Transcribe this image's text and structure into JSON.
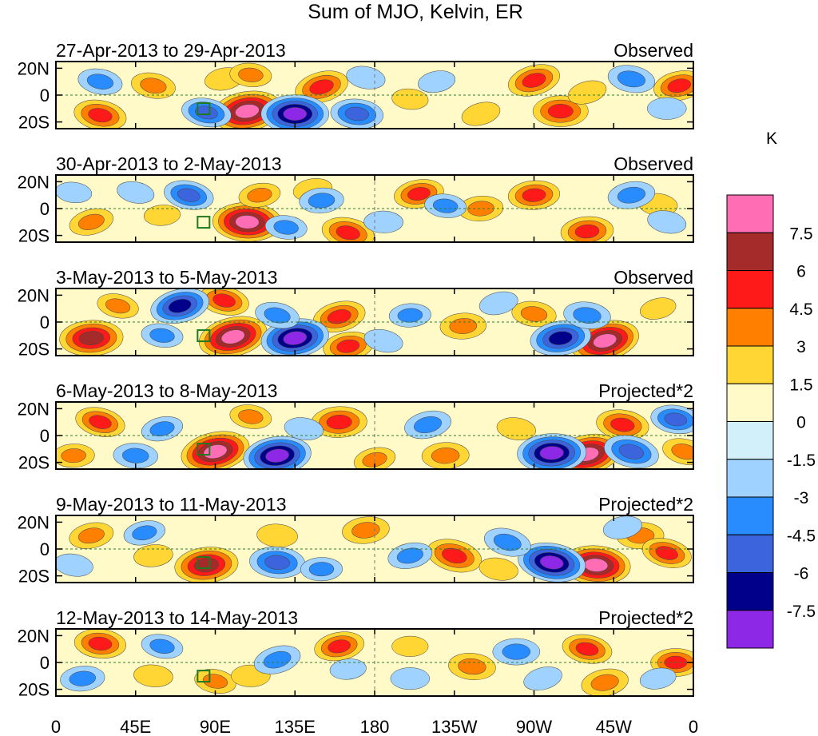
{
  "chart_data": {
    "type": "heatmap",
    "title": "Sum of MJO, Kelvin, ER",
    "units": "K",
    "x_ticks": [
      "0",
      "45E",
      "90E",
      "135E",
      "180",
      "135W",
      "90W",
      "45W",
      "0"
    ],
    "y_ticks": [
      "20N",
      "0",
      "20S"
    ],
    "x_range_deg_east": [
      0,
      360
    ],
    "y_range_deg": [
      -25,
      25
    ],
    "colorbar": {
      "labels": [
        "7.5",
        "6",
        "4.5",
        "3",
        "1.5",
        "0",
        "-1.5",
        "-3",
        "-4.5",
        "-6",
        "-7.5"
      ],
      "levels": [
        7.5,
        6,
        4.5,
        3,
        1.5,
        0,
        -1.5,
        -3,
        -4.5,
        -6,
        -7.5
      ],
      "colors": [
        "#ff6eb4",
        "#a52a2a",
        "#ff1a1a",
        "#ff7f00",
        "#ffd633",
        "#fffac8",
        "#d2f0fa",
        "#a0d2ff",
        "#288cff",
        "#3c64dc",
        "#00008b",
        "#8c28e6"
      ]
    },
    "panels": [
      {
        "date_range": "27-Apr-2013 to 29-Apr-2013",
        "kind": "Observed",
        "blobs": [
          {
            "lon": 108,
            "lat": -12,
            "v": 8.2
          },
          {
            "lon": 150,
            "lat": 6,
            "v": 5.2
          },
          {
            "lon": 270,
            "lat": 11,
            "v": 5.0
          },
          {
            "lon": 285,
            "lat": -12,
            "v": 5.5
          },
          {
            "lon": 25,
            "lat": -15,
            "v": 5.0
          },
          {
            "lon": 55,
            "lat": 7,
            "v": 3.5
          },
          {
            "lon": 352,
            "lat": 7,
            "v": 4.8
          },
          {
            "lon": 95,
            "lat": 12,
            "v": 2.5
          },
          {
            "lon": 110,
            "lat": 15,
            "v": 3.0
          },
          {
            "lon": 300,
            "lat": 2,
            "v": 2.5
          },
          {
            "lon": 240,
            "lat": -14,
            "v": 2.5
          },
          {
            "lon": 200,
            "lat": -3,
            "v": 2.0
          },
          {
            "lon": 135,
            "lat": -14,
            "v": -7.8
          },
          {
            "lon": 170,
            "lat": -14,
            "v": -5.0
          },
          {
            "lon": 85,
            "lat": -13,
            "v": -4.5
          },
          {
            "lon": 25,
            "lat": 10,
            "v": -3.5
          },
          {
            "lon": 325,
            "lat": 12,
            "v": -4.0
          },
          {
            "lon": 175,
            "lat": 13,
            "v": -2.5
          },
          {
            "lon": 215,
            "lat": 10,
            "v": -2.2
          },
          {
            "lon": 345,
            "lat": -10,
            "v": -2.5
          }
        ]
      },
      {
        "date_range": "30-Apr-2013 to 2-May-2013",
        "kind": "Observed",
        "blobs": [
          {
            "lon": 108,
            "lat": -10,
            "v": 8.0
          },
          {
            "lon": 165,
            "lat": -18,
            "v": 5.0
          },
          {
            "lon": 270,
            "lat": 10,
            "v": 4.8
          },
          {
            "lon": 205,
            "lat": 11,
            "v": 4.5
          },
          {
            "lon": 300,
            "lat": -17,
            "v": 5.0
          },
          {
            "lon": 20,
            "lat": -10,
            "v": 3.5
          },
          {
            "lon": 115,
            "lat": 10,
            "v": 3.0
          },
          {
            "lon": 240,
            "lat": 0,
            "v": 3.5
          },
          {
            "lon": 340,
            "lat": 3,
            "v": 2.5
          },
          {
            "lon": 145,
            "lat": 14,
            "v": 2.5
          },
          {
            "lon": 60,
            "lat": -5,
            "v": 2.0
          },
          {
            "lon": 75,
            "lat": 10,
            "v": -4.5
          },
          {
            "lon": 150,
            "lat": 6,
            "v": -3.5
          },
          {
            "lon": 220,
            "lat": 2,
            "v": -3.0
          },
          {
            "lon": 325,
            "lat": 10,
            "v": -4.0
          },
          {
            "lon": 130,
            "lat": -14,
            "v": -3.0
          },
          {
            "lon": 185,
            "lat": -10,
            "v": -2.5
          },
          {
            "lon": 45,
            "lat": 12,
            "v": -2.2
          },
          {
            "lon": 345,
            "lat": -10,
            "v": -2.5
          },
          {
            "lon": 10,
            "lat": 12,
            "v": -2.0
          }
        ]
      },
      {
        "date_range": "3-May-2013 to 5-May-2013",
        "kind": "Observed",
        "blobs": [
          {
            "lon": 100,
            "lat": -11,
            "v": 8.0
          },
          {
            "lon": 20,
            "lat": -12,
            "v": 7.0
          },
          {
            "lon": 310,
            "lat": -14,
            "v": 8.0
          },
          {
            "lon": 160,
            "lat": 4,
            "v": 5.0
          },
          {
            "lon": 95,
            "lat": 16,
            "v": 4.5
          },
          {
            "lon": 165,
            "lat": -18,
            "v": 4.5
          },
          {
            "lon": 230,
            "lat": -3,
            "v": 3.8
          },
          {
            "lon": 270,
            "lat": 6,
            "v": 3.5
          },
          {
            "lon": 35,
            "lat": 12,
            "v": 3.0
          },
          {
            "lon": 340,
            "lat": 10,
            "v": 2.0
          },
          {
            "lon": 135,
            "lat": -12,
            "v": -7.8
          },
          {
            "lon": 70,
            "lat": 12,
            "v": -6.2
          },
          {
            "lon": 285,
            "lat": -12,
            "v": -6.5
          },
          {
            "lon": 300,
            "lat": 5,
            "v": -4.0
          },
          {
            "lon": 200,
            "lat": 5,
            "v": -3.0
          },
          {
            "lon": 125,
            "lat": 5,
            "v": -3.5
          },
          {
            "lon": 60,
            "lat": -10,
            "v": -3.0
          },
          {
            "lon": 250,
            "lat": 14,
            "v": -2.5
          },
          {
            "lon": 185,
            "lat": -14,
            "v": -2.5
          }
        ]
      },
      {
        "date_range": "6-May-2013 to 8-May-2013",
        "kind": "Projected*2",
        "blobs": [
          {
            "lon": 90,
            "lat": -12,
            "v": 8.0
          },
          {
            "lon": 300,
            "lat": -14,
            "v": 8.0
          },
          {
            "lon": 160,
            "lat": 10,
            "v": 5.5
          },
          {
            "lon": 320,
            "lat": 8,
            "v": 5.0
          },
          {
            "lon": 25,
            "lat": 10,
            "v": 4.5
          },
          {
            "lon": 220,
            "lat": -15,
            "v": 4.0
          },
          {
            "lon": 180,
            "lat": -18,
            "v": 3.0
          },
          {
            "lon": 10,
            "lat": -15,
            "v": 3.0
          },
          {
            "lon": 355,
            "lat": -12,
            "v": 3.5
          },
          {
            "lon": 110,
            "lat": 14,
            "v": 3.0
          },
          {
            "lon": 260,
            "lat": 5,
            "v": 2.5
          },
          {
            "lon": 280,
            "lat": -13,
            "v": -8.0
          },
          {
            "lon": 125,
            "lat": -15,
            "v": -7.8
          },
          {
            "lon": 325,
            "lat": -12,
            "v": -5.5
          },
          {
            "lon": 60,
            "lat": 5,
            "v": -3.0
          },
          {
            "lon": 210,
            "lat": 8,
            "v": -4.0
          },
          {
            "lon": 350,
            "lat": 12,
            "v": -4.5
          },
          {
            "lon": 45,
            "lat": -15,
            "v": -3.5
          },
          {
            "lon": 140,
            "lat": 5,
            "v": -2.5
          }
        ]
      },
      {
        "date_range": "9-May-2013 to 11-May-2013",
        "kind": "Projected*2",
        "blobs": [
          {
            "lon": 85,
            "lat": -12,
            "v": 7.0
          },
          {
            "lon": 305,
            "lat": -12,
            "v": 8.0
          },
          {
            "lon": 225,
            "lat": -5,
            "v": 5.5
          },
          {
            "lon": 175,
            "lat": 14,
            "v": 4.0
          },
          {
            "lon": 20,
            "lat": 10,
            "v": 3.5
          },
          {
            "lon": 330,
            "lat": 10,
            "v": 4.0
          },
          {
            "lon": 345,
            "lat": -3,
            "v": 4.5
          },
          {
            "lon": 125,
            "lat": 10,
            "v": 2.8
          },
          {
            "lon": 55,
            "lat": -5,
            "v": 2.5
          },
          {
            "lon": 250,
            "lat": -15,
            "v": 2.5
          },
          {
            "lon": 280,
            "lat": -10,
            "v": -7.8
          },
          {
            "lon": 125,
            "lat": -10,
            "v": -5.5
          },
          {
            "lon": 255,
            "lat": 5,
            "v": -4.0
          },
          {
            "lon": 200,
            "lat": -5,
            "v": -3.5
          },
          {
            "lon": 50,
            "lat": 12,
            "v": -3.0
          },
          {
            "lon": 150,
            "lat": -15,
            "v": -3.0
          },
          {
            "lon": 10,
            "lat": -12,
            "v": -2.5
          },
          {
            "lon": 320,
            "lat": 16,
            "v": -2.5
          }
        ]
      },
      {
        "date_range": "12-May-2013 to 14-May-2013",
        "kind": "Projected*2",
        "blobs": [
          {
            "lon": 25,
            "lat": 14,
            "v": 4.8
          },
          {
            "lon": 300,
            "lat": 10,
            "v": 4.5
          },
          {
            "lon": 350,
            "lat": 0,
            "v": 4.5
          },
          {
            "lon": 160,
            "lat": 12,
            "v": 4.5
          },
          {
            "lon": 235,
            "lat": -3,
            "v": 4.0
          },
          {
            "lon": 310,
            "lat": -15,
            "v": 4.0
          },
          {
            "lon": 90,
            "lat": -14,
            "v": 3.0
          },
          {
            "lon": 110,
            "lat": -10,
            "v": 2.5
          },
          {
            "lon": 55,
            "lat": -10,
            "v": 2.5
          },
          {
            "lon": 200,
            "lat": 12,
            "v": 2.0
          },
          {
            "lon": 260,
            "lat": 8,
            "v": -4.0
          },
          {
            "lon": 125,
            "lat": 2,
            "v": -4.0
          },
          {
            "lon": 60,
            "lat": 12,
            "v": -3.0
          },
          {
            "lon": 15,
            "lat": -12,
            "v": -3.5
          },
          {
            "lon": 200,
            "lat": -12,
            "v": -2.5
          },
          {
            "lon": 275,
            "lat": -12,
            "v": -2.5
          },
          {
            "lon": 340,
            "lat": -12,
            "v": -2.0
          },
          {
            "lon": 165,
            "lat": -5,
            "v": -2.0
          }
        ]
      }
    ]
  }
}
